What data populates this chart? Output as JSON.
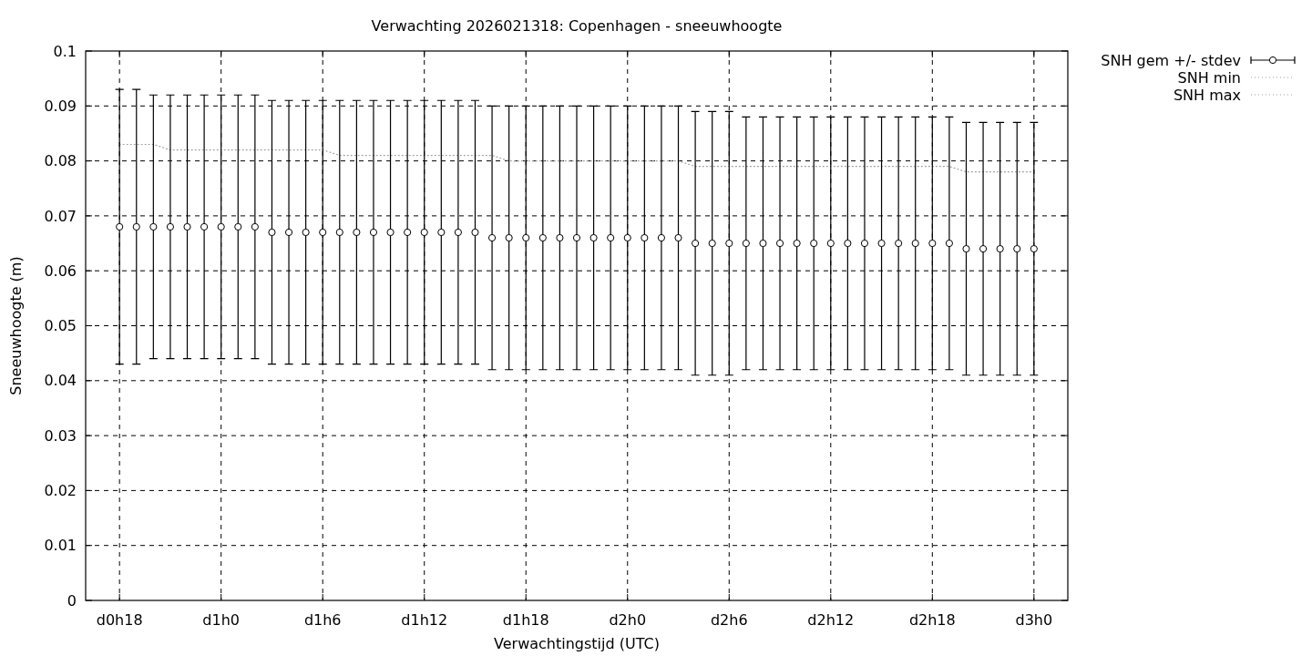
{
  "chart_data": {
    "type": "scatter",
    "title": "Verwachting 2026021318: Copenhagen - sneeuwhoogte",
    "xlabel": "Verwachtingstijd (UTC)",
    "ylabel": "Sneeuwhoogte (m)",
    "categories": [
      "d0h18",
      null,
      null,
      null,
      null,
      null,
      "d1h0",
      null,
      null,
      null,
      null,
      null,
      "d1h6",
      null,
      null,
      null,
      null,
      null,
      "d1h12",
      null,
      null,
      null,
      null,
      null,
      "d1h18",
      null,
      null,
      null,
      null,
      null,
      "d2h0",
      null,
      null,
      null,
      null,
      null,
      "d2h6",
      null,
      null,
      null,
      null,
      null,
      "d2h12",
      null,
      null,
      null,
      null,
      null,
      "d2h18",
      null,
      null,
      null,
      null,
      null,
      "d3h0"
    ],
    "ylim": [
      0,
      0.1
    ],
    "yticks": [
      0,
      0.01,
      0.02,
      0.03,
      0.04,
      0.05,
      0.06,
      0.07,
      0.08,
      0.09,
      0.1
    ],
    "grid": true,
    "legend": "top right",
    "series": [
      {
        "name": "SNH gem +/- stdev",
        "marker": "circle",
        "color": "#000000",
        "values": [
          0.068,
          0.068,
          0.068,
          0.068,
          0.068,
          0.068,
          0.068,
          0.068,
          0.068,
          0.067,
          0.067,
          0.067,
          0.067,
          0.067,
          0.067,
          0.067,
          0.067,
          0.067,
          0.067,
          0.067,
          0.067,
          0.067,
          0.066,
          0.066,
          0.066,
          0.066,
          0.066,
          0.066,
          0.066,
          0.066,
          0.066,
          0.066,
          0.066,
          0.066,
          0.065,
          0.065,
          0.065,
          0.065,
          0.065,
          0.065,
          0.065,
          0.065,
          0.065,
          0.065,
          0.065,
          0.065,
          0.065,
          0.065,
          0.065,
          0.065,
          0.064,
          0.064,
          0.064,
          0.064,
          0.064
        ],
        "errors": [
          0.025,
          0.025,
          0.024,
          0.024,
          0.024,
          0.024,
          0.024,
          0.024,
          0.024,
          0.024,
          0.024,
          0.024,
          0.024,
          0.024,
          0.024,
          0.024,
          0.024,
          0.024,
          0.024,
          0.024,
          0.024,
          0.024,
          0.024,
          0.024,
          0.024,
          0.024,
          0.024,
          0.024,
          0.024,
          0.024,
          0.024,
          0.024,
          0.024,
          0.024,
          0.024,
          0.024,
          0.024,
          0.023,
          0.023,
          0.023,
          0.023,
          0.023,
          0.023,
          0.023,
          0.023,
          0.023,
          0.023,
          0.023,
          0.023,
          0.023,
          0.023,
          0.023,
          0.023,
          0.023,
          0.023
        ]
      },
      {
        "name": "SNH min",
        "type": "line",
        "line_style": "dotted",
        "color": "#a0a0a0",
        "values": [
          null,
          null,
          null,
          null,
          null,
          null,
          null,
          null,
          null,
          null,
          null,
          null,
          null,
          null,
          null,
          null,
          null,
          null,
          null,
          null,
          null,
          null,
          null,
          null,
          null,
          null,
          null,
          null,
          null,
          null,
          null,
          null,
          null,
          null,
          null,
          null,
          null,
          null,
          null,
          null,
          null,
          null,
          null,
          null,
          null,
          null,
          null,
          null,
          null,
          null,
          null,
          null,
          null,
          null,
          null
        ]
      },
      {
        "name": "SNH max",
        "type": "line",
        "line_style": "dotted",
        "color": "#a0a0a0",
        "values": [
          0.083,
          0.083,
          0.083,
          0.082,
          0.082,
          0.082,
          0.082,
          0.082,
          0.082,
          0.082,
          0.082,
          0.082,
          0.082,
          0.081,
          0.081,
          0.081,
          0.081,
          0.081,
          0.081,
          0.081,
          0.081,
          0.081,
          0.081,
          0.08,
          0.08,
          0.08,
          0.08,
          0.08,
          0.08,
          0.08,
          0.08,
          0.08,
          0.08,
          0.08,
          0.079,
          0.079,
          0.079,
          0.079,
          0.079,
          0.079,
          0.079,
          0.079,
          0.079,
          0.079,
          0.079,
          0.079,
          0.079,
          0.079,
          0.079,
          0.079,
          0.078,
          0.078,
          0.078,
          0.078,
          0.078
        ]
      }
    ]
  }
}
